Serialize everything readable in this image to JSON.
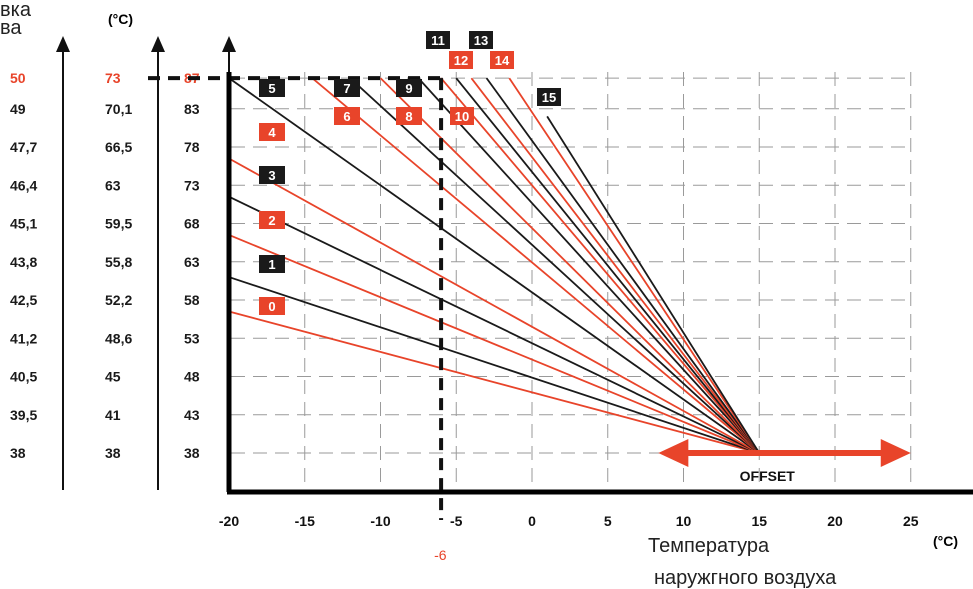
{
  "colors": {
    "red": "#e8442a",
    "black": "#1a1a1a",
    "grid": "#9a9a9a"
  },
  "col1": {
    "header": "вка\nва",
    "ticks": [
      "50",
      "49",
      "47,7",
      "46,4",
      "45,1",
      "43,8",
      "42,5",
      "41,2",
      "40,5",
      "39,5",
      "38"
    ]
  },
  "col2": {
    "header": "(°C)",
    "ticks": [
      "73",
      "70,1",
      "66,5",
      "63",
      "59,5",
      "55,8",
      "52,2",
      "48,6",
      "45",
      "41",
      "38"
    ]
  },
  "col3": {
    "ticks": [
      "87",
      "83",
      "78",
      "73",
      "68",
      "63",
      "58",
      "53",
      "48",
      "43",
      "38"
    ]
  },
  "x_unit": "(°C)",
  "x_caption_line1": "Температура",
  "x_caption_line2": "наружгного воздуха",
  "offset_label": "OFFSET",
  "marker_label": "-6",
  "chart_data": {
    "type": "line",
    "x_ticks": [
      -20,
      -15,
      -10,
      -5,
      0,
      5,
      10,
      15,
      20,
      25
    ],
    "xlim": [
      -20,
      27
    ],
    "ylim": [
      38,
      87
    ],
    "y_ticks": [
      38,
      43,
      48,
      53,
      58,
      63,
      68,
      73,
      78,
      83,
      87
    ],
    "pivot": {
      "x": 15,
      "y": 38
    },
    "marker_x": -6,
    "marker_y": 87,
    "offset_range": [
      9,
      25
    ],
    "grid": true,
    "series": [
      {
        "name": "0",
        "color": "red",
        "points": [
          [
            -20,
            56.5
          ],
          [
            15,
            38
          ]
        ]
      },
      {
        "name": "1",
        "color": "black",
        "points": [
          [
            -20,
            61
          ],
          [
            15,
            38
          ]
        ]
      },
      {
        "name": "2",
        "color": "red",
        "points": [
          [
            -20,
            66.5
          ],
          [
            15,
            38
          ]
        ]
      },
      {
        "name": "3",
        "color": "black",
        "points": [
          [
            -20,
            71.5
          ],
          [
            15,
            38
          ]
        ]
      },
      {
        "name": "4",
        "color": "red",
        "points": [
          [
            -20,
            76.5
          ],
          [
            15,
            38
          ]
        ]
      },
      {
        "name": "5",
        "color": "black",
        "points": [
          [
            -20,
            87
          ],
          [
            15,
            38
          ]
        ]
      },
      {
        "name": "6",
        "color": "red",
        "points": [
          [
            -14.5,
            87
          ],
          [
            15,
            38
          ]
        ]
      },
      {
        "name": "7",
        "color": "black",
        "points": [
          [
            -12,
            87
          ],
          [
            15,
            38
          ]
        ]
      },
      {
        "name": "8",
        "color": "red",
        "points": [
          [
            -10,
            87
          ],
          [
            15,
            38
          ]
        ]
      },
      {
        "name": "9",
        "color": "black",
        "points": [
          [
            -7.5,
            87
          ],
          [
            15,
            38
          ]
        ]
      },
      {
        "name": "10",
        "color": "red",
        "points": [
          [
            -6,
            87
          ],
          [
            15,
            38
          ]
        ]
      },
      {
        "name": "11",
        "color": "black",
        "points": [
          [
            -5,
            87
          ],
          [
            15,
            38
          ]
        ]
      },
      {
        "name": "12",
        "color": "red",
        "points": [
          [
            -4,
            87
          ],
          [
            15,
            38
          ]
        ]
      },
      {
        "name": "13",
        "color": "black",
        "points": [
          [
            -3,
            87
          ],
          [
            15,
            38
          ]
        ]
      },
      {
        "name": "14",
        "color": "red",
        "points": [
          [
            -1.5,
            87
          ],
          [
            15,
            38
          ]
        ]
      },
      {
        "name": "15",
        "color": "black",
        "points": [
          [
            1,
            82
          ],
          [
            15,
            38
          ]
        ]
      }
    ]
  }
}
